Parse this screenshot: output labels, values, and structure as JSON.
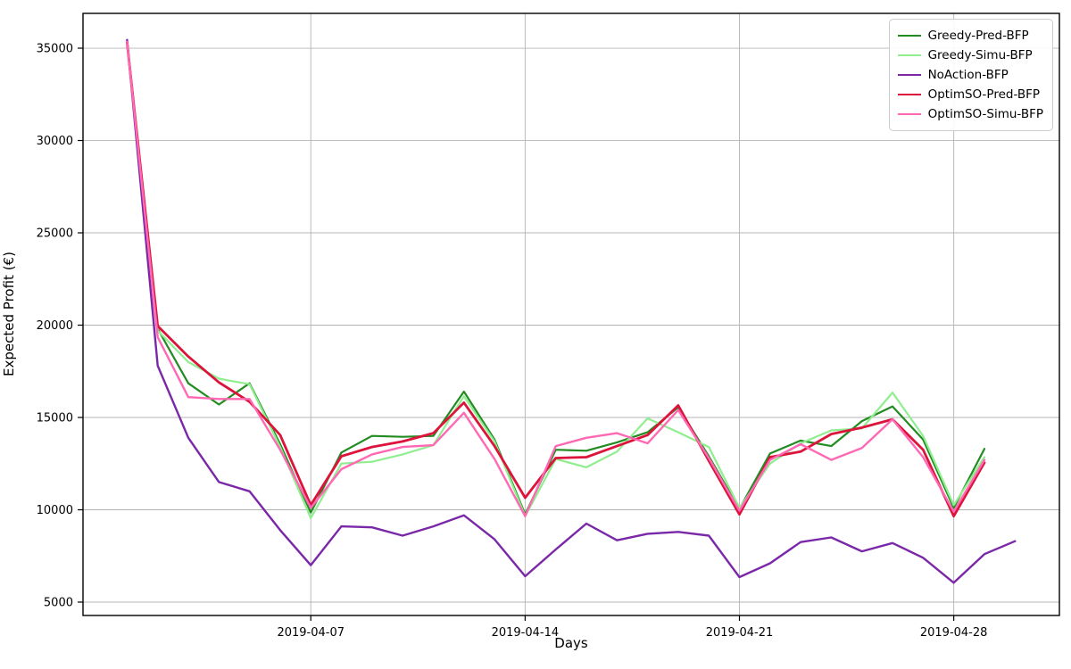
{
  "figure": {
    "background": "#ffffff",
    "grid_color": "#b4b4b4",
    "spine_color": "#000000",
    "tick_label_color": "#000000"
  },
  "chart_data": {
    "type": "line",
    "title": "",
    "xlabel": "Days",
    "ylabel": "Expected Profit (€)",
    "grid": true,
    "legend_position": "upper right",
    "x_dates": [
      "2019-04-01",
      "2019-04-02",
      "2019-04-03",
      "2019-04-04",
      "2019-04-05",
      "2019-04-06",
      "2019-04-07",
      "2019-04-08",
      "2019-04-09",
      "2019-04-10",
      "2019-04-11",
      "2019-04-12",
      "2019-04-13",
      "2019-04-14",
      "2019-04-15",
      "2019-04-16",
      "2019-04-17",
      "2019-04-18",
      "2019-04-19",
      "2019-04-20",
      "2019-04-21",
      "2019-04-22",
      "2019-04-23",
      "2019-04-24",
      "2019-04-25",
      "2019-04-26",
      "2019-04-27",
      "2019-04-28",
      "2019-04-29",
      "2019-04-30"
    ],
    "xticks": [
      {
        "label": "2019-04-07",
        "day": 7
      },
      {
        "label": "2019-04-14",
        "day": 14
      },
      {
        "label": "2019-04-21",
        "day": 21
      },
      {
        "label": "2019-04-28",
        "day": 28
      }
    ],
    "yticks": [
      5000,
      10000,
      15000,
      20000,
      25000,
      30000,
      35000
    ],
    "ylim": [
      4275,
      36885
    ],
    "xlim_days": [
      -0.44,
      31.45
    ],
    "series": [
      {
        "name": "Greedy-Pred-BFP",
        "color": "#228B22",
        "linewidth": 2.2,
        "values": [
          35400,
          19800,
          16850,
          15700,
          16850,
          13550,
          9850,
          13100,
          14000,
          13950,
          14000,
          16400,
          13800,
          9750,
          13250,
          13200,
          13650,
          14200,
          15550,
          12900,
          10050,
          13050,
          13750,
          13450,
          14800,
          15600,
          13800,
          10100,
          13300,
          null
        ]
      },
      {
        "name": "Greedy-Simu-BFP",
        "color": "#90EE90",
        "linewidth": 2.2,
        "values": [
          35400,
          19700,
          18000,
          17100,
          16800,
          13400,
          9550,
          12500,
          12600,
          13000,
          13500,
          16150,
          13700,
          9650,
          12750,
          12300,
          13150,
          14950,
          14200,
          13400,
          10100,
          12500,
          13600,
          14300,
          14400,
          16350,
          14000,
          10250,
          12850,
          null
        ]
      },
      {
        "name": "NoAction-BFP",
        "color": "#7A28A8",
        "linewidth": 2.4,
        "values": [
          35450,
          17800,
          13900,
          11500,
          11000,
          8900,
          7000,
          9100,
          9050,
          8600,
          9100,
          9700,
          8400,
          6400,
          7850,
          9250,
          8350,
          8700,
          8800,
          8600,
          6350,
          7100,
          8250,
          8500,
          7750,
          8200,
          7400,
          6050,
          7600,
          8300
        ]
      },
      {
        "name": "OptimSO-Pred-BFP",
        "color": "#DC143C",
        "linewidth": 2.8,
        "values": [
          35300,
          19950,
          18300,
          16900,
          15850,
          14050,
          10250,
          12900,
          13400,
          13700,
          14150,
          15800,
          13450,
          10650,
          12800,
          12850,
          13450,
          14050,
          15650,
          12650,
          9750,
          12850,
          13150,
          14100,
          14450,
          14900,
          13250,
          9650,
          12550,
          null
        ]
      },
      {
        "name": "OptimSO-Simu-BFP",
        "color": "#FF69B4",
        "linewidth": 2.4,
        "values": [
          35350,
          19350,
          16100,
          16000,
          16000,
          13250,
          10100,
          12200,
          13000,
          13400,
          13500,
          15250,
          12750,
          9650,
          13450,
          13900,
          14150,
          13600,
          15400,
          12800,
          9950,
          12700,
          13550,
          12700,
          13350,
          14900,
          12850,
          9900,
          12700,
          null
        ]
      }
    ]
  }
}
